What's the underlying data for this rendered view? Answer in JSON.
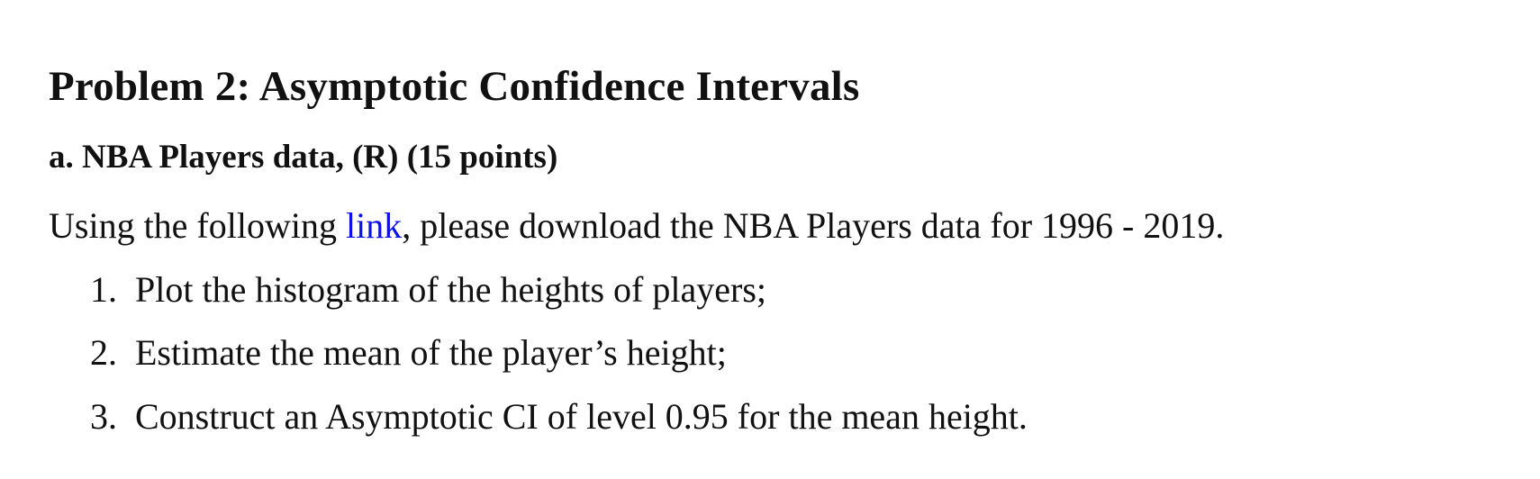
{
  "document": {
    "title": "Problem 2: Asymptotic Confidence Intervals",
    "subtitle": "a. NBA Players data, (R) (15 points)",
    "paragraph": {
      "before_link": "Using the following ",
      "link_text": "link",
      "after_link": ", please download the NBA Players data for 1996 - 2019."
    },
    "steps": [
      {
        "number": "1.",
        "text": "Plot the histogram of the heights of players;"
      },
      {
        "number": "2.",
        "text": "Estimate the mean of the player’s height;"
      },
      {
        "number": "3.",
        "text": "Construct an Asymptotic CI of level 0.95 for the mean height."
      }
    ]
  },
  "colors": {
    "text": "#111111",
    "link": "#0b12e6",
    "background": "#ffffff"
  }
}
